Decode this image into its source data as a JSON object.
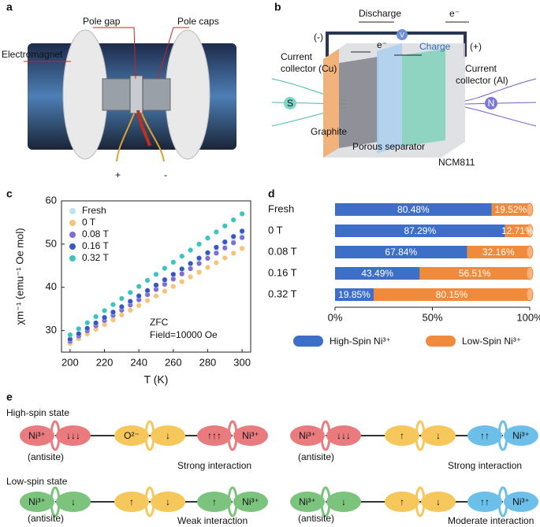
{
  "panel_a": {
    "label": "a",
    "electromagnet": "Electromagnet",
    "pole_gap": "Pole gap",
    "pole_caps": "Pole caps",
    "plus": "+",
    "minus": "-"
  },
  "panel_b": {
    "label": "b",
    "discharge": "Discharge",
    "e_top": "e⁻",
    "negative": "(-)",
    "positive": "(+)",
    "e_inner": "e⁻",
    "charge": "Charge",
    "voltmeter": "V",
    "collector_cu": [
      "Current",
      "collector (Cu)"
    ],
    "collector_al": [
      "Current",
      "collector (Al)"
    ],
    "s_pole": "S",
    "n_pole": "N",
    "graphite": "Graphite",
    "separator": "Porous separator",
    "cathode": "NCM811"
  },
  "chart_data": [
    {
      "panel": "c",
      "type": "scatter",
      "ylabel": "χm⁻¹ (emu⁻¹ Oe mol)",
      "xlabel": "T (K)",
      "annotations": [
        "ZFC",
        "Field=10000 Oe"
      ],
      "legend": "upper left",
      "x": [
        200,
        205,
        210,
        215,
        220,
        225,
        230,
        235,
        240,
        245,
        250,
        255,
        260,
        265,
        270,
        275,
        280,
        285,
        290,
        295,
        300
      ],
      "series": [
        {
          "name": "Fresh",
          "color": "#bfe3f5",
          "values": [
            28,
            29.2,
            30.4,
            31.6,
            32.8,
            34,
            35.2,
            36.4,
            37.6,
            38.8,
            40,
            41.2,
            42.4,
            43.6,
            44.8,
            46,
            47.2,
            48.4,
            49.6,
            50.8,
            52
          ]
        },
        {
          "name": "0 T",
          "color": "#f7c27a",
          "values": [
            27,
            28.1,
            29.2,
            30.3,
            31.4,
            32.5,
            33.6,
            34.7,
            35.8,
            36.9,
            38,
            39.1,
            40.2,
            41.3,
            42.4,
            43.5,
            44.6,
            45.7,
            46.8,
            47.9,
            49
          ]
        },
        {
          "name": "0.08 T",
          "color": "#7b6fd6",
          "values": [
            27.5,
            28.7,
            29.9,
            31.1,
            32.3,
            33.5,
            34.7,
            35.9,
            37.1,
            38.3,
            39.5,
            40.7,
            41.9,
            43.1,
            44.3,
            45.5,
            46.7,
            47.9,
            49.1,
            50.3,
            51.5
          ]
        },
        {
          "name": "0.16 T",
          "color": "#3a55c4",
          "values": [
            28,
            29.25,
            30.5,
            31.75,
            33,
            34.25,
            35.5,
            36.75,
            38,
            39.25,
            40.5,
            41.75,
            43,
            44.25,
            45.5,
            46.75,
            48,
            49.25,
            50.5,
            51.75,
            53
          ]
        },
        {
          "name": "0.32 T",
          "color": "#3cc4c0",
          "values": [
            29,
            30.4,
            31.8,
            33.2,
            34.6,
            36,
            37.4,
            38.8,
            40.2,
            41.6,
            43,
            44.4,
            45.8,
            47.2,
            48.6,
            50,
            51.4,
            52.8,
            54.2,
            55.6,
            57
          ]
        }
      ],
      "xlim": [
        195,
        305
      ],
      "xticks": [
        200,
        220,
        240,
        260,
        280,
        300
      ],
      "ylim": [
        25,
        60
      ],
      "yticks": [
        30,
        40,
        50,
        60
      ]
    },
    {
      "panel": "d",
      "type": "barh",
      "stacked": true,
      "legend": "bottom",
      "categories": [
        "Fresh",
        "0 T",
        "0.08 T",
        "0.16 T",
        "0.32 T"
      ],
      "series": [
        {
          "name": "High-Spin Ni³⁺",
          "color": "#3d6fc8",
          "values": [
            80.48,
            87.29,
            67.84,
            43.49,
            19.85
          ],
          "value_labels": [
            "80.48%",
            "87.29%",
            "67.84%",
            "43.49%",
            "19.85%"
          ]
        },
        {
          "name": "Low-Spin Ni³⁺",
          "color": "#f08a3c",
          "values": [
            19.52,
            12.71,
            32.16,
            56.51,
            80.15
          ],
          "value_labels": [
            "19.52%",
            "12.71%",
            "32.16%",
            "56.51%",
            "80.15%"
          ]
        }
      ],
      "xlim": [
        0,
        100
      ],
      "xticks": [
        {
          "value": 0,
          "label": "0%"
        },
        {
          "value": 50,
          "label": "50%"
        },
        {
          "value": 100,
          "label": "100%"
        }
      ]
    }
  ],
  "panel_e": {
    "label": "e",
    "high_spin": "High-spin state",
    "low_spin": "Low-spin state",
    "chains": [
      {
        "lobes": [
          "Ni³⁺",
          "↓↓↓",
          "O²⁻",
          "↓",
          "↑↑↑",
          "Ni³⁺"
        ],
        "colors": [
          "#e97b7f",
          "#f6c75b",
          "#e97b7f"
        ],
        "note": "(antisite)",
        "interaction": "Strong interaction"
      },
      {
        "lobes": [
          "Ni³⁺",
          "↓↓↓",
          "↑",
          "↓",
          "↑↑",
          "Ni³⁺"
        ],
        "colors": [
          "#e97b7f",
          "#f6c75b",
          "#6cbfe8"
        ],
        "note": "(antisite)",
        "interaction": "Strong interaction"
      },
      {
        "lobes": [
          "Ni³⁺",
          "↓",
          "↑",
          "↓",
          "↑",
          "Ni³⁺"
        ],
        "colors": [
          "#7cc47e",
          "#f6c75b",
          "#7cc47e"
        ],
        "note": "(antisite)",
        "interaction": "Weak interaction"
      },
      {
        "lobes": [
          "Ni³⁺",
          "↓",
          "↑",
          "↓",
          "↑↑",
          "Ni³⁺"
        ],
        "colors": [
          "#7cc47e",
          "#f6c75b",
          "#6cbfe8"
        ],
        "note": "(antisite)",
        "interaction": "Moderate interaction"
      }
    ]
  }
}
